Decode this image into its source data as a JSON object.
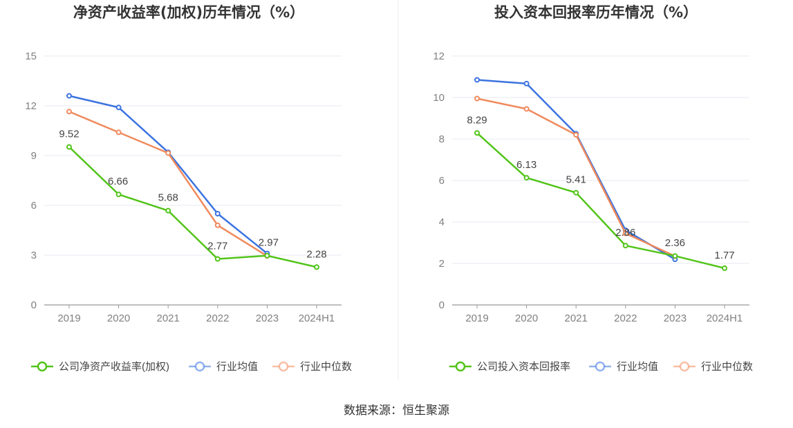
{
  "source_text": "数据来源：恒生聚源",
  "chart_data": [
    {
      "type": "line",
      "title": "净资产收益率(加权)历年情况（%）",
      "categories": [
        "2019",
        "2020",
        "2021",
        "2022",
        "2023",
        "2024H1"
      ],
      "ylim": [
        0,
        15
      ],
      "yticks": [
        0,
        3,
        6,
        9,
        12,
        15
      ],
      "grid": true,
      "legend_position": "bottom",
      "series": [
        {
          "name": "公司净资产收益率(加权)",
          "color": "#52c41a",
          "values": [
            9.52,
            6.66,
            5.68,
            2.77,
            2.97,
            2.28
          ],
          "labels": [
            "9.52",
            "6.66",
            "5.68",
            "2.77",
            "2.97",
            "2.28"
          ]
        },
        {
          "name": "行业均值",
          "color": "#3b73e0",
          "values": [
            12.6,
            11.9,
            9.2,
            5.5,
            3.1,
            null
          ]
        },
        {
          "name": "行业中位数",
          "color": "#f08a5d",
          "values": [
            11.65,
            10.4,
            9.15,
            4.8,
            2.95,
            null
          ]
        }
      ]
    },
    {
      "type": "line",
      "title": "投入资本回报率历年情况（%）",
      "categories": [
        "2019",
        "2020",
        "2021",
        "2022",
        "2023",
        "2024H1"
      ],
      "ylim": [
        0,
        12
      ],
      "yticks": [
        0,
        2,
        4,
        6,
        8,
        10,
        12
      ],
      "grid": true,
      "legend_position": "bottom",
      "series": [
        {
          "name": "公司投入资本回报率",
          "color": "#52c41a",
          "values": [
            8.29,
            6.13,
            5.41,
            2.86,
            2.36,
            1.77
          ],
          "labels": [
            "8.29",
            "6.13",
            "5.41",
            "2.86",
            "2.36",
            "1.77"
          ]
        },
        {
          "name": "行业均值",
          "color": "#3b73e0",
          "values": [
            10.85,
            10.67,
            8.25,
            3.6,
            2.2,
            null
          ]
        },
        {
          "name": "行业中位数",
          "color": "#f08a5d",
          "values": [
            9.95,
            9.45,
            8.2,
            3.45,
            2.35,
            null
          ]
        }
      ]
    }
  ]
}
